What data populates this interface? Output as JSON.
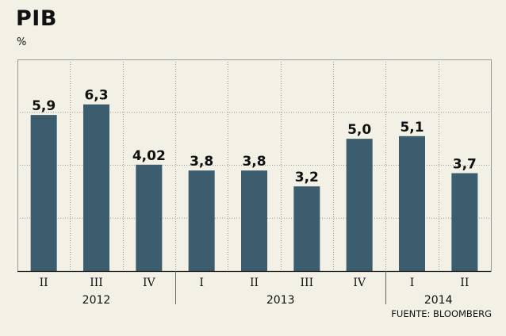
{
  "source": "FUENTE: BLOOMBERG",
  "colors": {
    "bar": "#3b5d6e",
    "background": "#f3f0e6",
    "grid": "#999999"
  },
  "chart_data": {
    "type": "bar",
    "title": "PIB",
    "ylabel": "%",
    "categories": [
      "II",
      "III",
      "IV",
      "I",
      "II",
      "III",
      "IV",
      "I",
      "II"
    ],
    "values": [
      5.9,
      6.3,
      4.02,
      3.8,
      3.8,
      3.2,
      5.0,
      5.1,
      3.7
    ],
    "value_labels": [
      "5,9",
      "6,3",
      "4,02",
      "3,8",
      "3,8",
      "3,2",
      "5,0",
      "5,1",
      "3,7"
    ],
    "groups": [
      {
        "label": "2012",
        "start": 0,
        "end": 2
      },
      {
        "label": "2013",
        "start": 3,
        "end": 6
      },
      {
        "label": "2014",
        "start": 7,
        "end": 8
      }
    ],
    "ylim": [
      0,
      8
    ],
    "gridlines": [
      2,
      4,
      6,
      8
    ],
    "grid": true
  }
}
